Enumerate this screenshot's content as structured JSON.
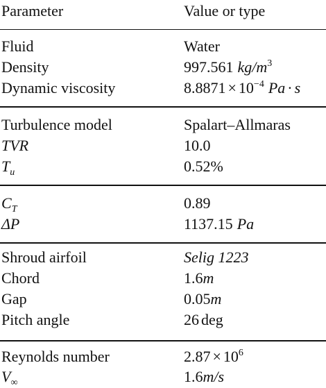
{
  "header": {
    "col1": "Parameter",
    "col2": "Value or type"
  },
  "groups": [
    [
      {
        "name": "Fluid",
        "value": "Water"
      },
      {
        "name": "Density",
        "value_num": "997.561",
        "value_unit": "kg/m",
        "value_exp": "3"
      },
      {
        "name": "Dynamic viscosity",
        "value_mant": "8.8871",
        "value_times": "×",
        "value_base": "10",
        "value_exp": "−4",
        "value_unit_a": "Pa",
        "value_dot": "·",
        "value_unit_b": "s"
      }
    ],
    [
      {
        "name": "Turbulence model",
        "value": "Spalart–Allmaras"
      },
      {
        "name": "TVR",
        "value": "10.0"
      },
      {
        "name_main": "T",
        "name_sub": "u",
        "value": "0.52%"
      }
    ],
    [
      {
        "name_main": "C",
        "name_sub": "T",
        "value": "0.89"
      },
      {
        "name": "ΔP",
        "value_num": "1137.15",
        "value_unit": "Pa"
      }
    ],
    [
      {
        "name": "Shroud airfoil",
        "value": "Selig 1223"
      },
      {
        "name": "Chord",
        "value_num": "1.6",
        "value_unit": "m"
      },
      {
        "name": "Gap",
        "value_num": "0.05",
        "value_unit": "m"
      },
      {
        "name": "Pitch angle",
        "value_num": "26",
        "value_unit": "deg"
      }
    ],
    [
      {
        "name": "Reynolds number",
        "value_mant": "2.87",
        "value_times": "×",
        "value_base": "10",
        "value_exp": "6"
      },
      {
        "name_main": "V",
        "name_sub": "∞",
        "value_num": "1.6",
        "value_unit": "m/s"
      }
    ]
  ]
}
